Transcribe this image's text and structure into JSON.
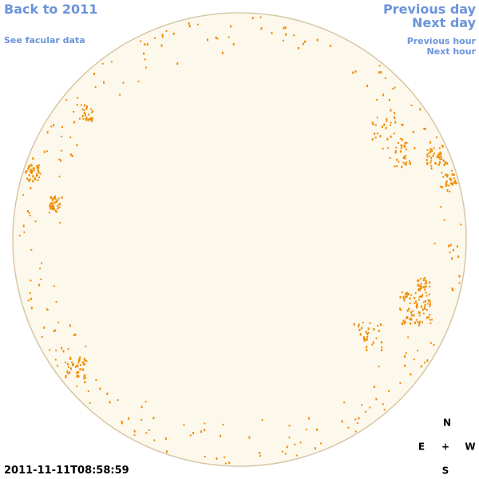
{
  "links": {
    "back_year": "Back to 2011",
    "facular": "See facular data",
    "previous_day": "Previous day",
    "next_day": "Next day",
    "previous_hour": "Previous hour",
    "next_hour": "Next hour"
  },
  "compass": {
    "north": "N",
    "east": "E",
    "center": "+",
    "west": "W",
    "south": "S"
  },
  "timestamp": "2011-11-11T08:58:59"
}
